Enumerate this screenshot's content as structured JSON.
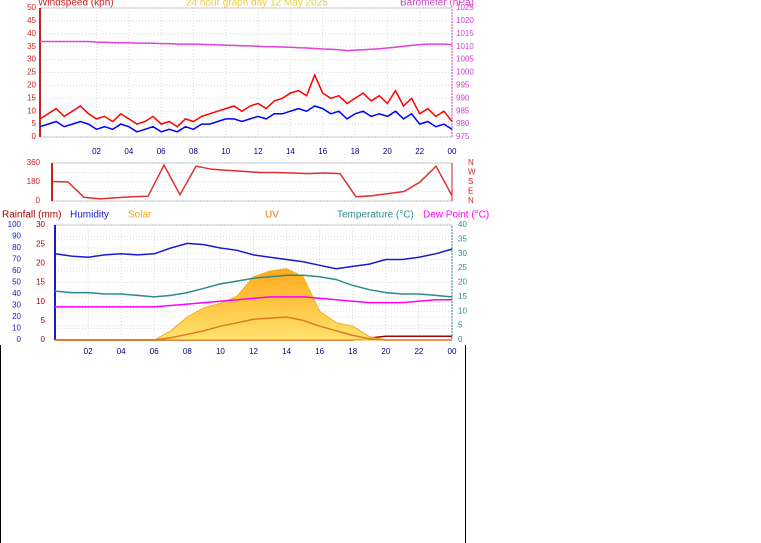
{
  "chart_data": [
    {
      "type": "line",
      "title": "24 hour graph day   12 May 2025",
      "ylabel": "Windspeed (kph)",
      "y2label": "Barometer (hPa)",
      "grid": true,
      "xlim": [
        -1.5,
        24
      ],
      "ylim": [
        0,
        50
      ],
      "y2lim": [
        975,
        1025
      ],
      "xticks": [
        {
          "value": 2,
          "label": "02"
        },
        {
          "value": 4,
          "label": "04"
        },
        {
          "value": 6,
          "label": "06"
        },
        {
          "value": 8,
          "label": "08"
        },
        10,
        12,
        14,
        16,
        18,
        20,
        22,
        {
          "value": 24,
          "label": "00"
        }
      ],
      "yticks": [
        0,
        5,
        10,
        15,
        20,
        25,
        30,
        35,
        40,
        45,
        50
      ],
      "y2ticks": [
        975,
        980,
        985,
        990,
        995,
        1000,
        1005,
        1010,
        1015,
        1020,
        1025
      ],
      "x": [
        -1.5,
        -1,
        -0.5,
        0,
        0.5,
        1,
        1.5,
        2,
        2.5,
        3,
        3.5,
        4,
        4.5,
        5,
        5.5,
        6,
        6.5,
        7,
        7.5,
        8,
        8.5,
        9,
        9.5,
        10,
        10.5,
        11,
        11.5,
        12,
        12.5,
        13,
        13.5,
        14,
        14.5,
        15,
        15.5,
        16,
        16.5,
        17,
        17.5,
        18,
        18.5,
        19,
        19.5,
        20,
        20.5,
        21,
        21.5,
        22,
        22.5,
        23,
        23.5,
        24
      ],
      "series": [
        {
          "color": "#ff0000",
          "values": [
            7,
            9,
            11,
            8,
            10,
            12,
            9,
            7,
            8,
            6,
            9,
            7,
            5,
            6,
            8,
            5,
            6,
            4,
            7,
            6,
            8,
            9,
            10,
            11,
            12,
            10,
            12,
            13,
            11,
            14,
            15,
            17,
            18,
            16,
            24,
            17,
            15,
            16,
            13,
            15,
            17,
            14,
            16,
            13,
            18,
            12,
            15,
            9,
            11,
            8,
            10,
            6
          ]
        },
        {
          "color": "#0000ff",
          "values": [
            4,
            5,
            6,
            4,
            5,
            6,
            5,
            3,
            4,
            3,
            5,
            4,
            2,
            3,
            4,
            2,
            3,
            2,
            4,
            3,
            5,
            5,
            6,
            7,
            7,
            6,
            7,
            8,
            7,
            9,
            9,
            10,
            11,
            10,
            12,
            11,
            9,
            10,
            7,
            9,
            10,
            8,
            9,
            8,
            10,
            7,
            9,
            5,
            6,
            4,
            5,
            3
          ]
        },
        {
          "color": "#e040e0",
          "axis": "y2",
          "values": [
            1012,
            1012,
            1012,
            1012,
            1012,
            1012,
            1012,
            1011.8,
            1011.7,
            1011.6,
            1011.5,
            1011.5,
            1011.4,
            1011.4,
            1011.3,
            1011.2,
            1011.2,
            1011,
            1011,
            1011,
            1010.9,
            1010.8,
            1010.7,
            1010.6,
            1010.5,
            1010.4,
            1010.3,
            1010.2,
            1010,
            1010,
            1009.9,
            1009.8,
            1009.6,
            1009.5,
            1009.3,
            1009.1,
            1009,
            1008.8,
            1008.5,
            1008.7,
            1008.8,
            1009,
            1009.2,
            1009.5,
            1009.8,
            1010.2,
            1010.5,
            1010.8,
            1011,
            1011,
            1011,
            1010.8
          ]
        }
      ]
    },
    {
      "type": "line",
      "grid": true,
      "xlim": [
        -1,
        24
      ],
      "ylim": [
        0,
        360
      ],
      "yticks": [
        0,
        180,
        360
      ],
      "y2ticks": [
        {
          "value": 360,
          "label": "N"
        },
        {
          "value": 270,
          "label": "W"
        },
        {
          "value": 180,
          "label": "S"
        },
        {
          "value": 90,
          "label": "E"
        },
        {
          "value": 0,
          "label": "N"
        }
      ],
      "x": [
        -1,
        0,
        1,
        2,
        3,
        4,
        5,
        6,
        7,
        8,
        9,
        10,
        11,
        12,
        13,
        14,
        15,
        16,
        17,
        18,
        19,
        20,
        21,
        22,
        23,
        24
      ],
      "series": [
        {
          "color": "#e03030",
          "values": [
            185,
            180,
            35,
            20,
            30,
            40,
            45,
            340,
            60,
            330,
            300,
            290,
            280,
            270,
            270,
            265,
            260,
            265,
            260,
            40,
            50,
            70,
            90,
            180,
            330,
            50
          ]
        }
      ]
    },
    {
      "type": "line",
      "grid": true,
      "xlim": [
        0,
        24
      ],
      "ylim": [
        0,
        100
      ],
      "y2lim": [
        0,
        40
      ],
      "y3lim": [
        0,
        30
      ],
      "xticks": [
        {
          "value": 2,
          "label": "02"
        },
        {
          "value": 4,
          "label": "04"
        },
        {
          "value": 6,
          "label": "06"
        },
        {
          "value": 8,
          "label": "08"
        },
        10,
        12,
        14,
        16,
        18,
        20,
        22,
        {
          "value": 24,
          "label": "00"
        }
      ],
      "yticks": [
        0,
        10,
        20,
        30,
        40,
        50,
        60,
        70,
        80,
        90,
        100
      ],
      "y2ticks": [
        0,
        5,
        10,
        15,
        20,
        25,
        30,
        35,
        40
      ],
      "y3ticks": [
        0,
        5,
        10,
        15,
        20,
        25,
        30
      ],
      "x": [
        0,
        1,
        2,
        3,
        4,
        5,
        6,
        7,
        8,
        9,
        10,
        11,
        12,
        13,
        14,
        15,
        16,
        17,
        18,
        19,
        20,
        21,
        22,
        23,
        24
      ],
      "series": [
        {
          "name": "Rainfall (mm)",
          "color": "#a00000",
          "axis": "y3",
          "values": [
            0,
            0,
            0,
            0,
            0,
            0,
            0,
            0,
            0,
            0,
            0,
            0,
            0,
            0,
            0,
            0,
            0,
            0,
            0,
            0.5,
            1,
            1,
            1,
            1,
            1
          ]
        },
        {
          "name": "Humidity",
          "color": "#1a1acc",
          "values": [
            75,
            73,
            72,
            74,
            75,
            74,
            75,
            80,
            84,
            83,
            80,
            78,
            74,
            72,
            70,
            68,
            65,
            62,
            64,
            66,
            70,
            70,
            72,
            75,
            79
          ]
        },
        {
          "name": "Solar",
          "color": "#f0a800",
          "area": true,
          "values": [
            0,
            0,
            0,
            0,
            0,
            0,
            0,
            8,
            20,
            28,
            32,
            38,
            55,
            60,
            62,
            55,
            25,
            15,
            12,
            3,
            0,
            0,
            0,
            0,
            0
          ]
        },
        {
          "name": "UV",
          "color": "#e07820",
          "values": [
            0,
            0,
            0,
            0,
            0,
            0,
            0,
            2,
            5,
            8,
            12,
            15,
            18,
            19,
            20,
            17,
            12,
            8,
            4,
            1,
            0,
            0,
            0,
            0,
            0
          ]
        },
        {
          "name": "Temperature (°C)",
          "color": "#2e8b8b",
          "axis": "y2",
          "values": [
            17,
            16.5,
            16.5,
            16,
            16,
            15.5,
            15,
            15.5,
            16.5,
            18,
            19.5,
            20.5,
            21.5,
            22,
            22.5,
            22.5,
            22,
            21,
            19,
            17.5,
            16.5,
            16,
            16,
            15.5,
            15
          ]
        },
        {
          "name": "Dew Point (°C)",
          "color": "#ff00ff",
          "axis": "y2",
          "values": [
            11.5,
            11.5,
            11.5,
            11.5,
            11.5,
            11.5,
            11.5,
            12,
            12.5,
            13,
            13.5,
            14,
            14.5,
            15,
            15,
            15,
            14.5,
            14,
            13.5,
            13,
            13,
            13,
            13.5,
            14,
            14
          ]
        }
      ]
    }
  ]
}
